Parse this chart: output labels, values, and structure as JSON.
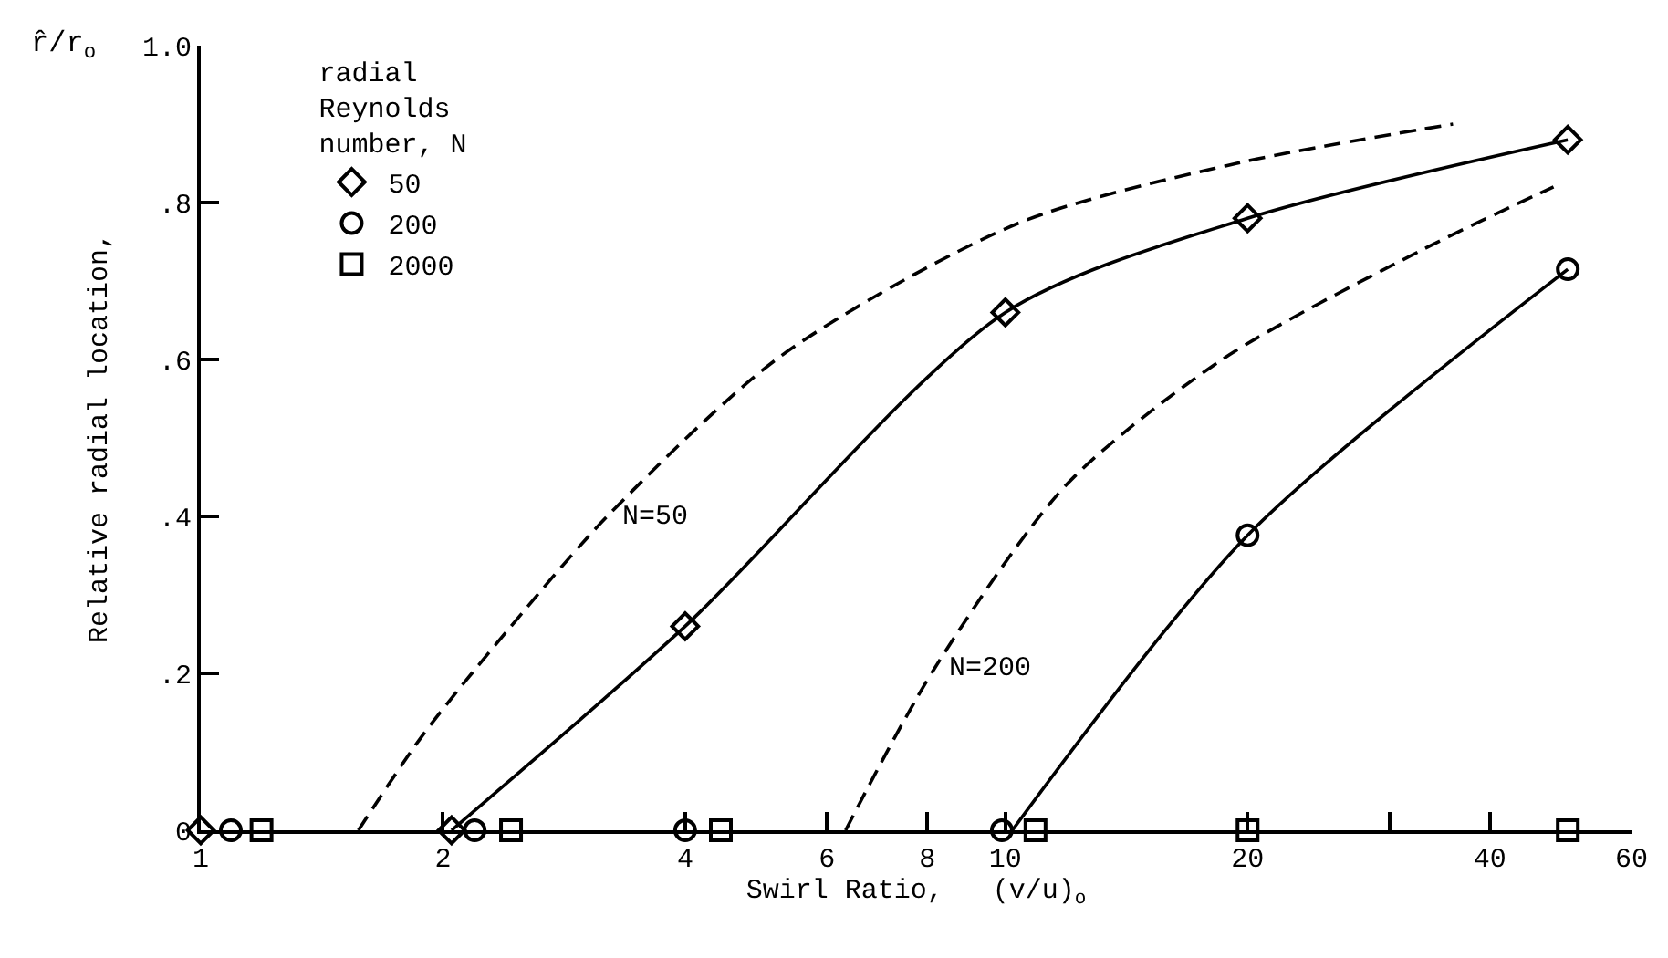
{
  "chart_data": {
    "type": "scatter",
    "xlabel": "Swirl Ratio,   (v/u)$_{o}$",
    "ylabel": "Relative radial location,",
    "legend_title": "radial Reynolds number, N",
    "annotations": [
      "r̂/r$_{o}$",
      {
        "text": "N=50",
        "x": 3.2,
        "y": 0.4
      },
      {
        "text": "N=200",
        "x": 8.15,
        "y": 0.205
      }
    ],
    "log": "x",
    "xlim": [
      1,
      60
    ],
    "xticks": [
      1,
      2,
      4,
      6,
      8,
      10,
      20,
      {
        "value": 30,
        "label": null
      },
      40,
      60
    ],
    "ylim": [
      0,
      1.0
    ],
    "yticks": [
      {
        "value": 0,
        "label": "0"
      },
      {
        "value": 0.2,
        "label": ".2"
      },
      {
        "value": 0.4,
        "label": ".4"
      },
      {
        "value": 0.6,
        "label": ".6"
      },
      {
        "value": 0.8,
        "label": ".8"
      },
      {
        "value": 1.0,
        "label": "1.0"
      }
    ],
    "legend": "top left",
    "series": [
      {
        "name": "50",
        "marker": "diamond",
        "color": "#000000",
        "x": [
          1.0,
          2.05,
          4.0,
          10.0,
          20.0,
          50.0
        ],
        "values": [
          0,
          0,
          0.26,
          0.66,
          0.78,
          0.88
        ]
      },
      {
        "name": "200",
        "marker": "circle",
        "color": "#000000",
        "x": [
          1.09,
          2.19,
          4.0,
          9.9,
          20.0,
          50.0
        ],
        "values": [
          0,
          0,
          0,
          0,
          0.376,
          0.715
        ]
      },
      {
        "name": "2000",
        "marker": "square",
        "color": "#000000",
        "x": [
          1.19,
          2.43,
          4.43,
          10.9,
          20.0,
          50.0
        ],
        "values": [
          0,
          0,
          0,
          0,
          0,
          0
        ]
      },
      {
        "type": "line",
        "marker": "none",
        "line_style": "solid",
        "color": "#000000",
        "x": [
          2.05,
          4.0,
          10.0,
          20.0,
          50.0
        ],
        "values": [
          0,
          0.26,
          0.66,
          0.78,
          0.88
        ]
      },
      {
        "type": "line",
        "marker": "none",
        "line_style": "solid",
        "color": "#000000",
        "x": [
          10.2,
          20.0,
          50.0
        ],
        "values": [
          0,
          0.376,
          0.715
        ]
      },
      {
        "type": "line",
        "marker": "none",
        "line_style": "dashed",
        "color": "#000000",
        "x": [
          1.57,
          1.89,
          2.43,
          3.2,
          5.27,
          10.4,
          19.4,
          36.0
        ],
        "values": [
          0,
          0.122,
          0.26,
          0.4,
          0.605,
          0.774,
          0.85,
          0.9
        ]
      },
      {
        "type": "line",
        "marker": "none",
        "line_style": "dashed",
        "color": "#000000",
        "x": [
          6.33,
          8.15,
          11.9,
          18.6,
          33.0,
          48.0
        ],
        "values": [
          0,
          0.205,
          0.44,
          0.6,
          0.74,
          0.82
        ]
      }
    ]
  }
}
